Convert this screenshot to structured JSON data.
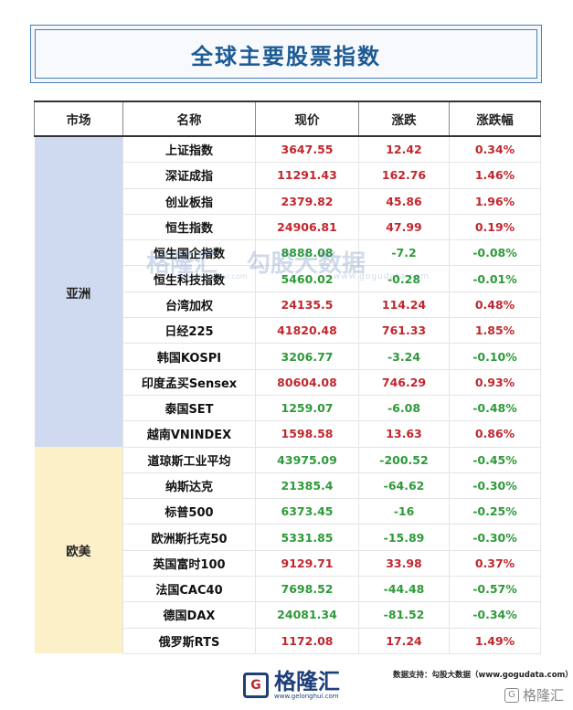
{
  "title": "全球主要股票指数",
  "headers": [
    "市场",
    "名称",
    "现价",
    "涨跌",
    "涨跌幅"
  ],
  "regions": [
    {
      "name": "亚洲",
      "rows": [
        {
          "name": "上证指数",
          "price": "3647.55",
          "change": "12.42",
          "pct": "0.34%",
          "dir": "up"
        },
        {
          "name": "深证成指",
          "price": "11291.43",
          "change": "162.76",
          "pct": "1.46%",
          "dir": "up"
        },
        {
          "name": "创业板指",
          "price": "2379.82",
          "change": "45.86",
          "pct": "1.96%",
          "dir": "up"
        },
        {
          "name": "恒生指数",
          "price": "24906.81",
          "change": "47.99",
          "pct": "0.19%",
          "dir": "up"
        },
        {
          "name": "恒生国企指数",
          "price": "8888.08",
          "change": "-7.2",
          "pct": "-0.08%",
          "dir": "down"
        },
        {
          "name": "恒生科技指数",
          "price": "5460.02",
          "change": "-0.28",
          "pct": "-0.01%",
          "dir": "down"
        },
        {
          "name": "台湾加权",
          "price": "24135.5",
          "change": "114.24",
          "pct": "0.48%",
          "dir": "up"
        },
        {
          "name": "日经225",
          "price": "41820.48",
          "change": "761.33",
          "pct": "1.85%",
          "dir": "up"
        },
        {
          "name": "韩国KOSPI",
          "price": "3206.77",
          "change": "-3.24",
          "pct": "-0.10%",
          "dir": "down"
        },
        {
          "name": "印度孟买Sensex",
          "price": "80604.08",
          "change": "746.29",
          "pct": "0.93%",
          "dir": "up"
        },
        {
          "name": "泰国SET",
          "price": "1259.07",
          "change": "-6.08",
          "pct": "-0.48%",
          "dir": "down"
        },
        {
          "name": "越南VNINDEX",
          "price": "1598.58",
          "change": "13.63",
          "pct": "0.86%",
          "dir": "up"
        }
      ]
    },
    {
      "name": "欧美",
      "rows": [
        {
          "name": "道琼斯工业平均",
          "price": "43975.09",
          "change": "-200.52",
          "pct": "-0.45%",
          "dir": "down"
        },
        {
          "name": "纳斯达克",
          "price": "21385.4",
          "change": "-64.62",
          "pct": "-0.30%",
          "dir": "down"
        },
        {
          "name": "标普500",
          "price": "6373.45",
          "change": "-16",
          "pct": "-0.25%",
          "dir": "down"
        },
        {
          "name": "欧洲斯托克50",
          "price": "5331.85",
          "change": "-15.89",
          "pct": "-0.30%",
          "dir": "down"
        },
        {
          "name": "英国富时100",
          "price": "9129.71",
          "change": "33.98",
          "pct": "0.37%",
          "dir": "up"
        },
        {
          "name": "法国CAC40",
          "price": "7698.52",
          "change": "-44.48",
          "pct": "-0.57%",
          "dir": "down"
        },
        {
          "name": "德国DAX",
          "price": "24081.34",
          "change": "-81.52",
          "pct": "-0.34%",
          "dir": "down"
        },
        {
          "name": "俄罗斯RTS",
          "price": "1172.08",
          "change": "17.24",
          "pct": "1.49%",
          "dir": "up"
        }
      ]
    }
  ],
  "colors": {
    "up": "#c1272d",
    "down": "#2e9a3a",
    "asia_bg": "#cfd9ef",
    "west_bg": "#fbf0c8",
    "title": "#1d5b95"
  },
  "watermark": {
    "brand": "格隆汇",
    "brand_url": "www.gelonghui.com",
    "partner": "勾股大数据",
    "partner_url": "www.gogudata.com"
  },
  "footer": {
    "source": "数据支持：勾股大数据（www.gogudata.com）",
    "logo_text": "格隆汇",
    "logo_url": "www.gelonghui.com",
    "corner_text": "格隆汇",
    "logo_icon": "gelonghui-g-logo-icon"
  }
}
